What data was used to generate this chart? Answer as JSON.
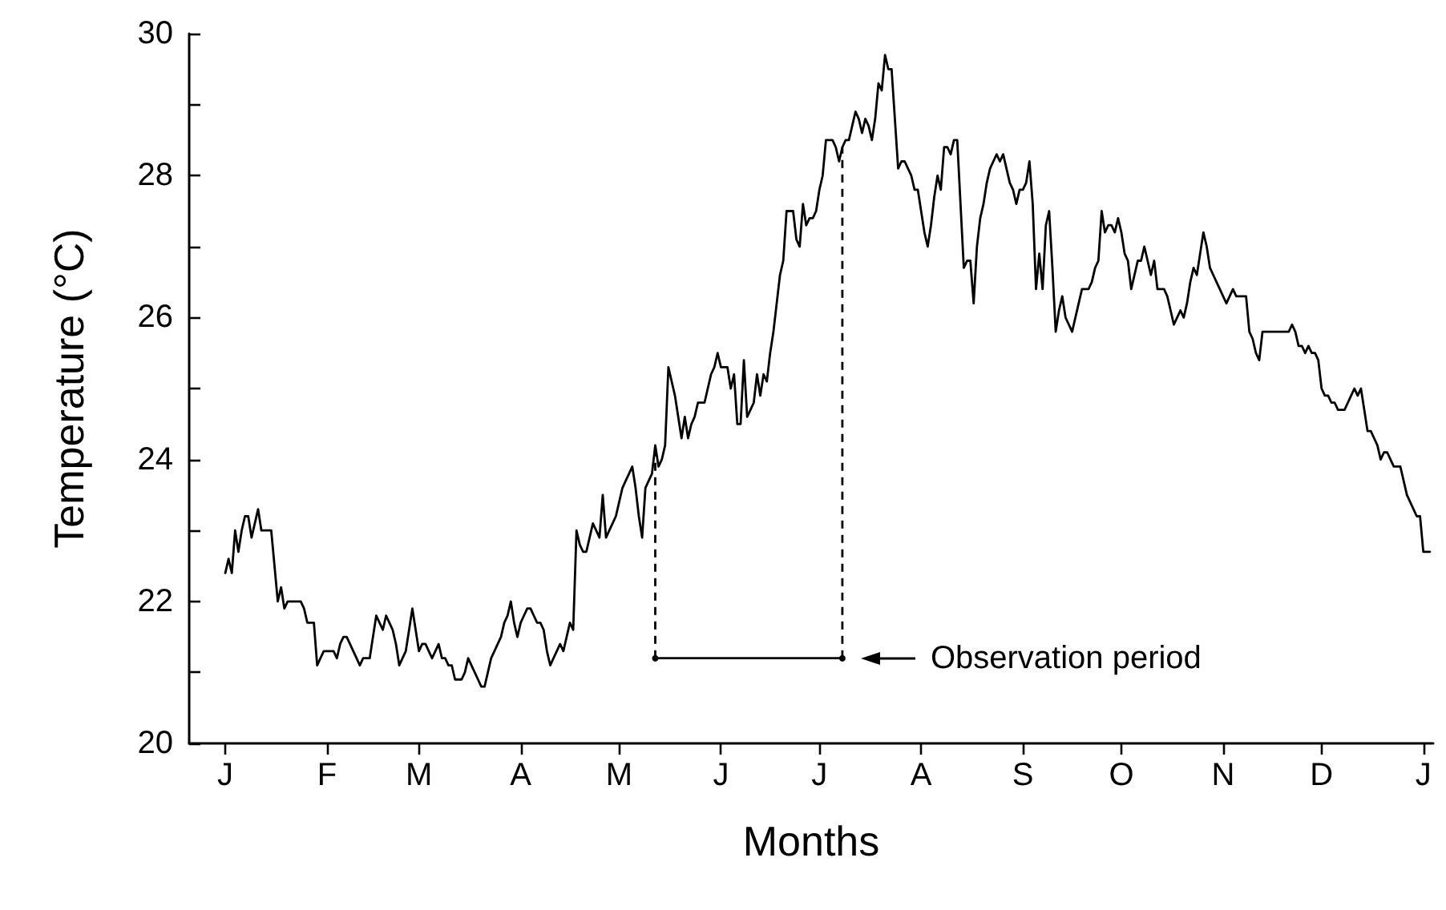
{
  "chart_data": {
    "type": "line",
    "xlabel": "Months",
    "ylabel": "Temperature (°C)",
    "grid": false,
    "marker": "none",
    "ylim": [
      20,
      30
    ],
    "yticks": [
      20,
      {
        "value": 21,
        "label": null
      },
      22,
      {
        "value": 23,
        "label": null
      },
      24,
      {
        "value": 25,
        "label": null
      },
      26,
      {
        "value": 27,
        "label": null
      },
      28,
      {
        "value": 29,
        "label": null
      },
      30
    ],
    "categories": [
      null,
      null,
      null,
      null,
      null,
      null,
      null,
      null,
      null,
      null,
      null,
      "J",
      null,
      null,
      null,
      null,
      null,
      null,
      null,
      null,
      null,
      null,
      null,
      null,
      null,
      null,
      null,
      null,
      null,
      null,
      null,
      null,
      null,
      null,
      null,
      null,
      null,
      null,
      null,
      null,
      null,
      null,
      "F",
      null,
      null,
      null,
      null,
      null,
      null,
      null,
      null,
      null,
      null,
      null,
      null,
      null,
      null,
      null,
      null,
      null,
      null,
      null,
      null,
      null,
      null,
      null,
      null,
      null,
      null,
      null,
      "M",
      null,
      null,
      null,
      null,
      null,
      null,
      null,
      null,
      null,
      null,
      null,
      null,
      null,
      null,
      null,
      null,
      null,
      null,
      null,
      null,
      null,
      null,
      null,
      null,
      null,
      null,
      null,
      null,
      null,
      null,
      "A",
      null,
      null,
      null,
      null,
      null,
      null,
      null,
      null,
      null,
      null,
      null,
      null,
      null,
      null,
      null,
      null,
      null,
      null,
      null,
      null,
      null,
      null,
      null,
      null,
      null,
      null,
      null,
      null,
      null,
      "M",
      null,
      null,
      null,
      null,
      null,
      null,
      null,
      null,
      null,
      null,
      null,
      null,
      null,
      null,
      null,
      null,
      null,
      null,
      null,
      null,
      null,
      null,
      null,
      null,
      null,
      null,
      null,
      null,
      null,
      null,
      "J",
      null,
      null,
      null,
      null,
      null,
      null,
      null,
      null,
      null,
      null,
      null,
      null,
      null,
      null,
      null,
      null,
      null,
      null,
      null,
      null,
      null,
      null,
      null,
      null,
      null,
      null,
      null,
      null,
      null,
      "J",
      null,
      null,
      null,
      null,
      null,
      null,
      null,
      null,
      null,
      null,
      null,
      null,
      null,
      null,
      null,
      null,
      null,
      null,
      null,
      null,
      null,
      null,
      null,
      null,
      null,
      null,
      null,
      null,
      null,
      null,
      "A",
      null,
      null,
      null,
      null,
      null,
      null,
      null,
      null,
      null,
      null,
      null,
      null,
      null,
      null,
      null,
      null,
      null,
      null,
      null,
      null,
      null,
      null,
      null,
      null,
      null,
      null,
      null,
      null,
      null,
      null,
      "S",
      null,
      null,
      null,
      null,
      null,
      null,
      null,
      null,
      null,
      null,
      null,
      null,
      null,
      null,
      null,
      null,
      null,
      null,
      null,
      null,
      null,
      null,
      null,
      null,
      null,
      null,
      null,
      null,
      null,
      "O",
      null,
      null,
      null,
      null,
      null,
      null,
      null,
      null,
      null,
      null,
      null,
      null,
      null,
      null,
      null,
      null,
      null,
      null,
      null,
      null,
      null,
      null,
      null,
      null,
      null,
      null,
      null,
      null,
      null,
      null,
      "N",
      null,
      null,
      null,
      null,
      null,
      null,
      null,
      null,
      null,
      null,
      null,
      null,
      null,
      null,
      null,
      null,
      null,
      null,
      null,
      null,
      null,
      null,
      null,
      null,
      null,
      null,
      null,
      null,
      null,
      "D",
      null,
      null,
      null,
      null,
      null,
      null,
      null,
      null,
      null,
      null,
      null,
      null,
      null,
      null,
      null,
      null,
      null,
      null,
      null,
      null,
      null,
      null,
      null,
      null,
      null,
      null,
      null,
      null,
      null,
      null,
      "J",
      null,
      null,
      null
    ],
    "series": [
      {
        "color": "#000000",
        "values": [
          null,
          null,
          null,
          null,
          null,
          null,
          null,
          null,
          null,
          null,
          null,
          22.4,
          22.6,
          22.4,
          23.0,
          22.7,
          23.0,
          23.2,
          23.2,
          22.9,
          23.1,
          23.3,
          23.0,
          23.0,
          23.0,
          23.0,
          22.5,
          22.0,
          22.2,
          21.9,
          22.0,
          22.0,
          22.0,
          22.0,
          22.0,
          21.9,
          21.7,
          21.7,
          21.7,
          21.1,
          21.2,
          21.3,
          21.3,
          21.3,
          21.3,
          21.2,
          21.4,
          21.5,
          21.5,
          21.4,
          21.3,
          21.2,
          21.1,
          21.2,
          21.2,
          21.2,
          21.5,
          21.8,
          21.7,
          21.6,
          21.8,
          21.7,
          21.6,
          21.4,
          21.1,
          21.2,
          21.3,
          21.6,
          21.9,
          21.6,
          21.3,
          21.4,
          21.4,
          21.3,
          21.2,
          21.3,
          21.4,
          21.2,
          21.2,
          21.1,
          21.1,
          20.9,
          20.9,
          20.9,
          21.0,
          21.2,
          21.1,
          21.0,
          20.9,
          20.8,
          20.8,
          21.0,
          21.2,
          21.3,
          21.4,
          21.5,
          21.7,
          21.8,
          22.0,
          21.7,
          21.5,
          21.7,
          21.8,
          21.9,
          21.9,
          21.8,
          21.7,
          21.7,
          21.6,
          21.3,
          21.1,
          21.2,
          21.3,
          21.4,
          21.3,
          21.5,
          21.7,
          21.6,
          23.0,
          22.8,
          22.7,
          22.7,
          22.9,
          23.1,
          23.0,
          22.9,
          23.5,
          22.9,
          23.0,
          23.1,
          23.2,
          23.4,
          23.6,
          23.7,
          23.8,
          23.9,
          23.6,
          23.2,
          22.9,
          23.6,
          23.7,
          23.8,
          24.2,
          23.9,
          24.0,
          24.2,
          25.3,
          25.1,
          24.9,
          24.6,
          24.3,
          24.6,
          24.3,
          24.5,
          24.6,
          24.8,
          24.8,
          24.8,
          25.0,
          25.2,
          25.3,
          25.5,
          25.3,
          25.3,
          25.3,
          25.0,
          25.2,
          24.5,
          24.5,
          25.4,
          24.6,
          24.7,
          24.8,
          25.2,
          24.9,
          25.2,
          25.1,
          25.5,
          25.8,
          26.2,
          26.6,
          26.8,
          27.5,
          27.5,
          27.5,
          27.1,
          27.0,
          27.6,
          27.3,
          27.4,
          27.4,
          27.5,
          27.8,
          28.0,
          28.5,
          28.5,
          28.5,
          28.4,
          28.2,
          28.4,
          28.5,
          28.5,
          28.7,
          28.9,
          28.8,
          28.6,
          28.8,
          28.7,
          28.5,
          28.8,
          29.3,
          29.2,
          29.7,
          29.5,
          29.5,
          28.8,
          28.1,
          28.2,
          28.2,
          28.1,
          28.0,
          27.8,
          27.8,
          27.5,
          27.2,
          27.0,
          27.3,
          27.7,
          28.0,
          27.8,
          28.4,
          28.4,
          28.3,
          28.5,
          28.5,
          27.6,
          26.7,
          26.8,
          26.8,
          26.2,
          27.0,
          27.4,
          27.6,
          27.9,
          28.1,
          28.2,
          28.3,
          28.2,
          28.3,
          28.1,
          27.9,
          27.8,
          27.6,
          27.8,
          27.8,
          27.9,
          28.2,
          27.6,
          26.4,
          26.9,
          26.4,
          27.3,
          27.5,
          26.7,
          25.8,
          26.1,
          26.3,
          26.0,
          25.9,
          25.8,
          26.0,
          26.2,
          26.4,
          26.4,
          26.4,
          26.5,
          26.7,
          26.8,
          27.5,
          27.2,
          27.3,
          27.3,
          27.2,
          27.4,
          27.2,
          26.9,
          26.8,
          26.4,
          26.6,
          26.8,
          26.8,
          27.0,
          26.8,
          26.6,
          26.8,
          26.4,
          26.4,
          26.4,
          26.3,
          26.1,
          25.9,
          26.0,
          26.1,
          26.0,
          26.2,
          26.5,
          26.7,
          26.6,
          26.9,
          27.2,
          27.0,
          26.7,
          26.6,
          26.5,
          26.4,
          26.3,
          26.2,
          26.3,
          26.4,
          26.3,
          26.3,
          26.3,
          26.3,
          25.8,
          25.7,
          25.5,
          25.4,
          25.8,
          25.8,
          25.8,
          25.8,
          25.8,
          25.8,
          25.8,
          25.8,
          25.8,
          25.9,
          25.8,
          25.6,
          25.6,
          25.5,
          25.6,
          25.5,
          25.5,
          25.4,
          25.0,
          24.9,
          24.9,
          24.8,
          24.8,
          24.7,
          24.7,
          24.7,
          24.8,
          24.9,
          25.0,
          24.9,
          25.0,
          24.7,
          24.4,
          24.4,
          24.3,
          24.2,
          24.0,
          24.1,
          24.1,
          24.0,
          23.9,
          23.9,
          23.9,
          23.7,
          23.5,
          23.4,
          23.3,
          23.2,
          23.2,
          22.7,
          22.7,
          22.7,
          null
        ]
      },
      {
        "color": "#000000",
        "values": [
          null,
          null,
          null,
          null,
          null,
          null,
          null,
          null,
          null,
          null,
          null,
          null,
          null,
          null,
          null,
          null,
          null,
          null,
          null,
          null,
          null,
          null,
          null,
          null,
          null,
          null,
          null,
          null,
          null,
          null,
          null,
          null,
          null,
          null,
          null,
          null,
          null,
          null,
          null,
          null,
          null,
          null,
          null,
          null,
          null,
          null,
          null,
          null,
          null,
          null,
          null,
          null,
          null,
          null,
          null,
          null,
          null,
          null,
          null,
          null,
          null,
          null,
          null,
          null,
          null,
          null,
          null,
          null,
          null,
          null,
          null,
          null,
          null,
          null,
          null,
          null,
          null,
          null,
          null,
          null,
          null,
          null,
          null,
          null,
          null,
          null,
          null,
          null,
          null,
          null,
          null,
          null,
          null,
          null,
          null,
          null,
          null,
          null,
          null,
          null,
          null,
          null,
          null,
          null,
          null,
          null,
          null,
          null,
          null,
          null,
          null,
          null,
          null,
          null,
          null,
          null,
          null,
          null,
          null,
          null,
          null,
          null,
          null,
          null,
          null,
          null,
          null,
          null,
          null,
          null,
          null,
          null,
          null,
          null,
          null,
          null,
          null,
          null,
          null,
          null,
          null,
          null,
          21.2,
          21.2,
          21.2,
          21.2,
          21.2,
          21.2,
          21.2,
          21.2,
          21.2,
          21.2,
          21.2,
          21.2,
          21.2,
          21.2,
          21.2,
          21.2,
          21.2,
          21.2,
          21.2,
          21.2,
          21.2,
          21.2,
          21.2,
          21.2,
          21.2,
          21.2,
          21.2,
          21.2,
          21.2,
          21.2,
          21.2,
          21.2,
          21.2,
          21.2,
          21.2,
          21.2,
          21.2,
          21.2,
          21.2,
          21.2,
          21.2,
          21.2,
          21.2,
          21.2,
          21.2,
          21.2,
          21.2,
          21.2,
          21.2,
          21.2,
          21.2,
          21.2,
          21.2,
          21.2,
          21.2,
          21.2,
          21.2,
          21.2,
          null,
          null,
          null,
          null,
          null,
          null,
          null,
          null,
          null,
          null,
          null,
          null,
          null,
          null,
          null,
          null,
          null,
          null,
          null,
          null,
          null,
          null,
          null,
          null,
          null,
          null,
          null,
          null,
          null,
          null,
          null,
          null,
          null,
          null,
          null,
          null,
          null,
          null,
          null,
          null,
          null,
          null,
          null,
          null,
          null,
          null,
          null,
          null,
          null,
          null,
          null,
          null,
          null,
          null,
          null,
          null,
          null,
          null,
          null,
          null,
          null,
          null,
          null,
          null,
          null,
          null,
          null,
          null,
          null,
          null,
          null,
          null,
          null,
          null,
          null,
          null,
          null,
          null,
          null,
          null,
          null,
          null,
          null,
          null,
          null,
          null,
          null,
          null,
          null,
          null,
          null,
          null,
          null,
          null,
          null,
          null,
          null,
          null,
          null,
          null,
          null,
          null,
          null,
          null,
          null,
          null,
          null,
          null,
          null,
          null,
          null,
          null,
          null,
          null,
          null,
          null,
          null,
          null,
          null,
          null,
          null,
          null,
          null,
          null,
          null,
          null,
          null,
          null,
          null,
          null,
          null,
          null,
          null,
          null,
          null,
          null,
          null,
          null,
          null,
          null,
          null,
          null,
          null,
          null,
          null,
          null,
          null,
          null,
          null,
          null,
          null,
          null,
          null,
          null,
          null,
          null,
          null,
          null,
          null,
          null,
          null,
          null,
          null,
          null,
          null,
          null,
          null,
          null,
          null,
          null,
          null,
          null,
          null,
          null,
          null,
          null,
          null,
          null,
          null,
          null
        ]
      },
      {
        "color": "#000000",
        "line_style": "dashed",
        "marker": "circle",
        "values": [
          null,
          null,
          null,
          null,
          null,
          null,
          null,
          null,
          null,
          null,
          null,
          null,
          null,
          null,
          null,
          null,
          null,
          null,
          null,
          null,
          null,
          null,
          null,
          null,
          null,
          null,
          null,
          null,
          null,
          null,
          null,
          null,
          null,
          null,
          null,
          null,
          null,
          null,
          null,
          null,
          null,
          null,
          null,
          null,
          null,
          null,
          null,
          null,
          null,
          null,
          null,
          null,
          null,
          null,
          null,
          null,
          null,
          null,
          null,
          null,
          null,
          null,
          null,
          null,
          null,
          null,
          null,
          null,
          null,
          null,
          null,
          null,
          null,
          null,
          null,
          null,
          null,
          null,
          null,
          null,
          null,
          null,
          null,
          null,
          null,
          null,
          null,
          null,
          null,
          null,
          null,
          null,
          null,
          null,
          null,
          null,
          null,
          null,
          null,
          null,
          null,
          null,
          null,
          null,
          null,
          null,
          null,
          null,
          null,
          null,
          null,
          null,
          null,
          null,
          null,
          null,
          null,
          null,
          null,
          null,
          null,
          null,
          null,
          null,
          null,
          null,
          null,
          null,
          null,
          null,
          null,
          null,
          null,
          null,
          null,
          null,
          null,
          null,
          null,
          null,
          null,
          null,
          21.2,
          null,
          null,
          null,
          null,
          null,
          null,
          null,
          null,
          null,
          null,
          null,
          null,
          null,
          null,
          null,
          null,
          null,
          null,
          null,
          null,
          null,
          null,
          null,
          null,
          null,
          null,
          null,
          null,
          null,
          null,
          null,
          null,
          null,
          null,
          null,
          null,
          null,
          null,
          null,
          null,
          null,
          null,
          null,
          null,
          null,
          null,
          null,
          null,
          null,
          null,
          null,
          null,
          null,
          null,
          null,
          null,
          21.2,
          null,
          null,
          null,
          null,
          null,
          null,
          null,
          null,
          null,
          null,
          null,
          null,
          null,
          null,
          null,
          null,
          null,
          null,
          null,
          null,
          null,
          null,
          null,
          null,
          null,
          null,
          null,
          null,
          null,
          null,
          null,
          null,
          null,
          null,
          null,
          null,
          null,
          null,
          null,
          null,
          null,
          null,
          null,
          null,
          null,
          null,
          null,
          null,
          null,
          null,
          null,
          null,
          null,
          null,
          null,
          null,
          null,
          null,
          null,
          null,
          null,
          null,
          null,
          null,
          null,
          null,
          null,
          null,
          null,
          null,
          null,
          null,
          null,
          null,
          null,
          null,
          null,
          null,
          null,
          null,
          null,
          null,
          null,
          null,
          null,
          null,
          null,
          null,
          null,
          null,
          null,
          null,
          null,
          null,
          null,
          null,
          null,
          null,
          null,
          null,
          null,
          null,
          null,
          null,
          null,
          null,
          null,
          null,
          null,
          null,
          null,
          null,
          null,
          null,
          null,
          null,
          null,
          null,
          null,
          null,
          null,
          null,
          null,
          null,
          null,
          null,
          null,
          null,
          null,
          null,
          null,
          null,
          null,
          null,
          null,
          null,
          null,
          null,
          null,
          null,
          null,
          null,
          null,
          null,
          null,
          null,
          null,
          null,
          null,
          null,
          null,
          null,
          null,
          null,
          null,
          null,
          null,
          null,
          null,
          null,
          null,
          null,
          null,
          null,
          null,
          null,
          null,
          null,
          null,
          null,
          null,
          null,
          null,
          null,
          null,
          null,
          null,
          null,
          null,
          null
        ],
        "errors": [
          null,
          null,
          null,
          null,
          null,
          null,
          null,
          null,
          null,
          null,
          null,
          null,
          null,
          null,
          null,
          null,
          null,
          null,
          null,
          null,
          null,
          null,
          null,
          null,
          null,
          null,
          null,
          null,
          null,
          null,
          null,
          null,
          null,
          null,
          null,
          null,
          null,
          null,
          null,
          null,
          null,
          null,
          null,
          null,
          null,
          null,
          null,
          null,
          null,
          null,
          null,
          null,
          null,
          null,
          null,
          null,
          null,
          null,
          null,
          null,
          null,
          null,
          null,
          null,
          null,
          null,
          null,
          null,
          null,
          null,
          null,
          null,
          null,
          null,
          null,
          null,
          null,
          null,
          null,
          null,
          null,
          null,
          null,
          null,
          null,
          null,
          null,
          null,
          null,
          null,
          null,
          null,
          null,
          null,
          null,
          null,
          null,
          null,
          null,
          null,
          null,
          null,
          null,
          null,
          null,
          null,
          null,
          null,
          null,
          null,
          null,
          null,
          null,
          null,
          null,
          null,
          null,
          null,
          null,
          null,
          null,
          null,
          null,
          null,
          null,
          null,
          null,
          null,
          null,
          null,
          null,
          null,
          null,
          null,
          null,
          null,
          null,
          null,
          null,
          null,
          null,
          null,
          [
            21.2,
            24.2
          ],
          null,
          null,
          null,
          null,
          null,
          null,
          null,
          null,
          null,
          null,
          null,
          null,
          null,
          null,
          null,
          null,
          null,
          null,
          null,
          null,
          null,
          null,
          null,
          null,
          null,
          null,
          null,
          null,
          null,
          null,
          null,
          null,
          null,
          null,
          null,
          null,
          null,
          null,
          null,
          null,
          null,
          null,
          null,
          null,
          null,
          null,
          null,
          null,
          null,
          null,
          null,
          null,
          null,
          null,
          null,
          null,
          [
            21.2,
            28.4
          ],
          null,
          null,
          null,
          null,
          null,
          null,
          null,
          null,
          null,
          null,
          null,
          null,
          null,
          null,
          null,
          null,
          null,
          null,
          null,
          null,
          null,
          null,
          null,
          null,
          null,
          null,
          null,
          null,
          null,
          null,
          null,
          null,
          null,
          null,
          null,
          null,
          null,
          null,
          null,
          null,
          null,
          null,
          null,
          null,
          null,
          null,
          null,
          null,
          null,
          null,
          null,
          null,
          null,
          null,
          null,
          null,
          null,
          null,
          null,
          null,
          null,
          null,
          null,
          null,
          null,
          null,
          null,
          null,
          null,
          null,
          null,
          null,
          null,
          null,
          null,
          null,
          null,
          null,
          null,
          null,
          null,
          null,
          null,
          null,
          null,
          null,
          null,
          null,
          null,
          null,
          null,
          null,
          null,
          null,
          null,
          null,
          null,
          null,
          null,
          null,
          null,
          null,
          null,
          null,
          null,
          null,
          null,
          null,
          null,
          null,
          null,
          null,
          null,
          null,
          null,
          null,
          null,
          null,
          null,
          null,
          null,
          null,
          null,
          null,
          null,
          null,
          null,
          null,
          null,
          null,
          null,
          null,
          null,
          null,
          null,
          null,
          null,
          null,
          null,
          null,
          null,
          null,
          null,
          null,
          null,
          null,
          null,
          null,
          null,
          null,
          null,
          null,
          null,
          null,
          null,
          null,
          null,
          null,
          null,
          null,
          null,
          null,
          null,
          null,
          null,
          null,
          null,
          null,
          null,
          null,
          null,
          null,
          null,
          null,
          null,
          null,
          null,
          null,
          null,
          null
        ]
      }
    ],
    "annotations": [
      "Observation period"
    ]
  }
}
